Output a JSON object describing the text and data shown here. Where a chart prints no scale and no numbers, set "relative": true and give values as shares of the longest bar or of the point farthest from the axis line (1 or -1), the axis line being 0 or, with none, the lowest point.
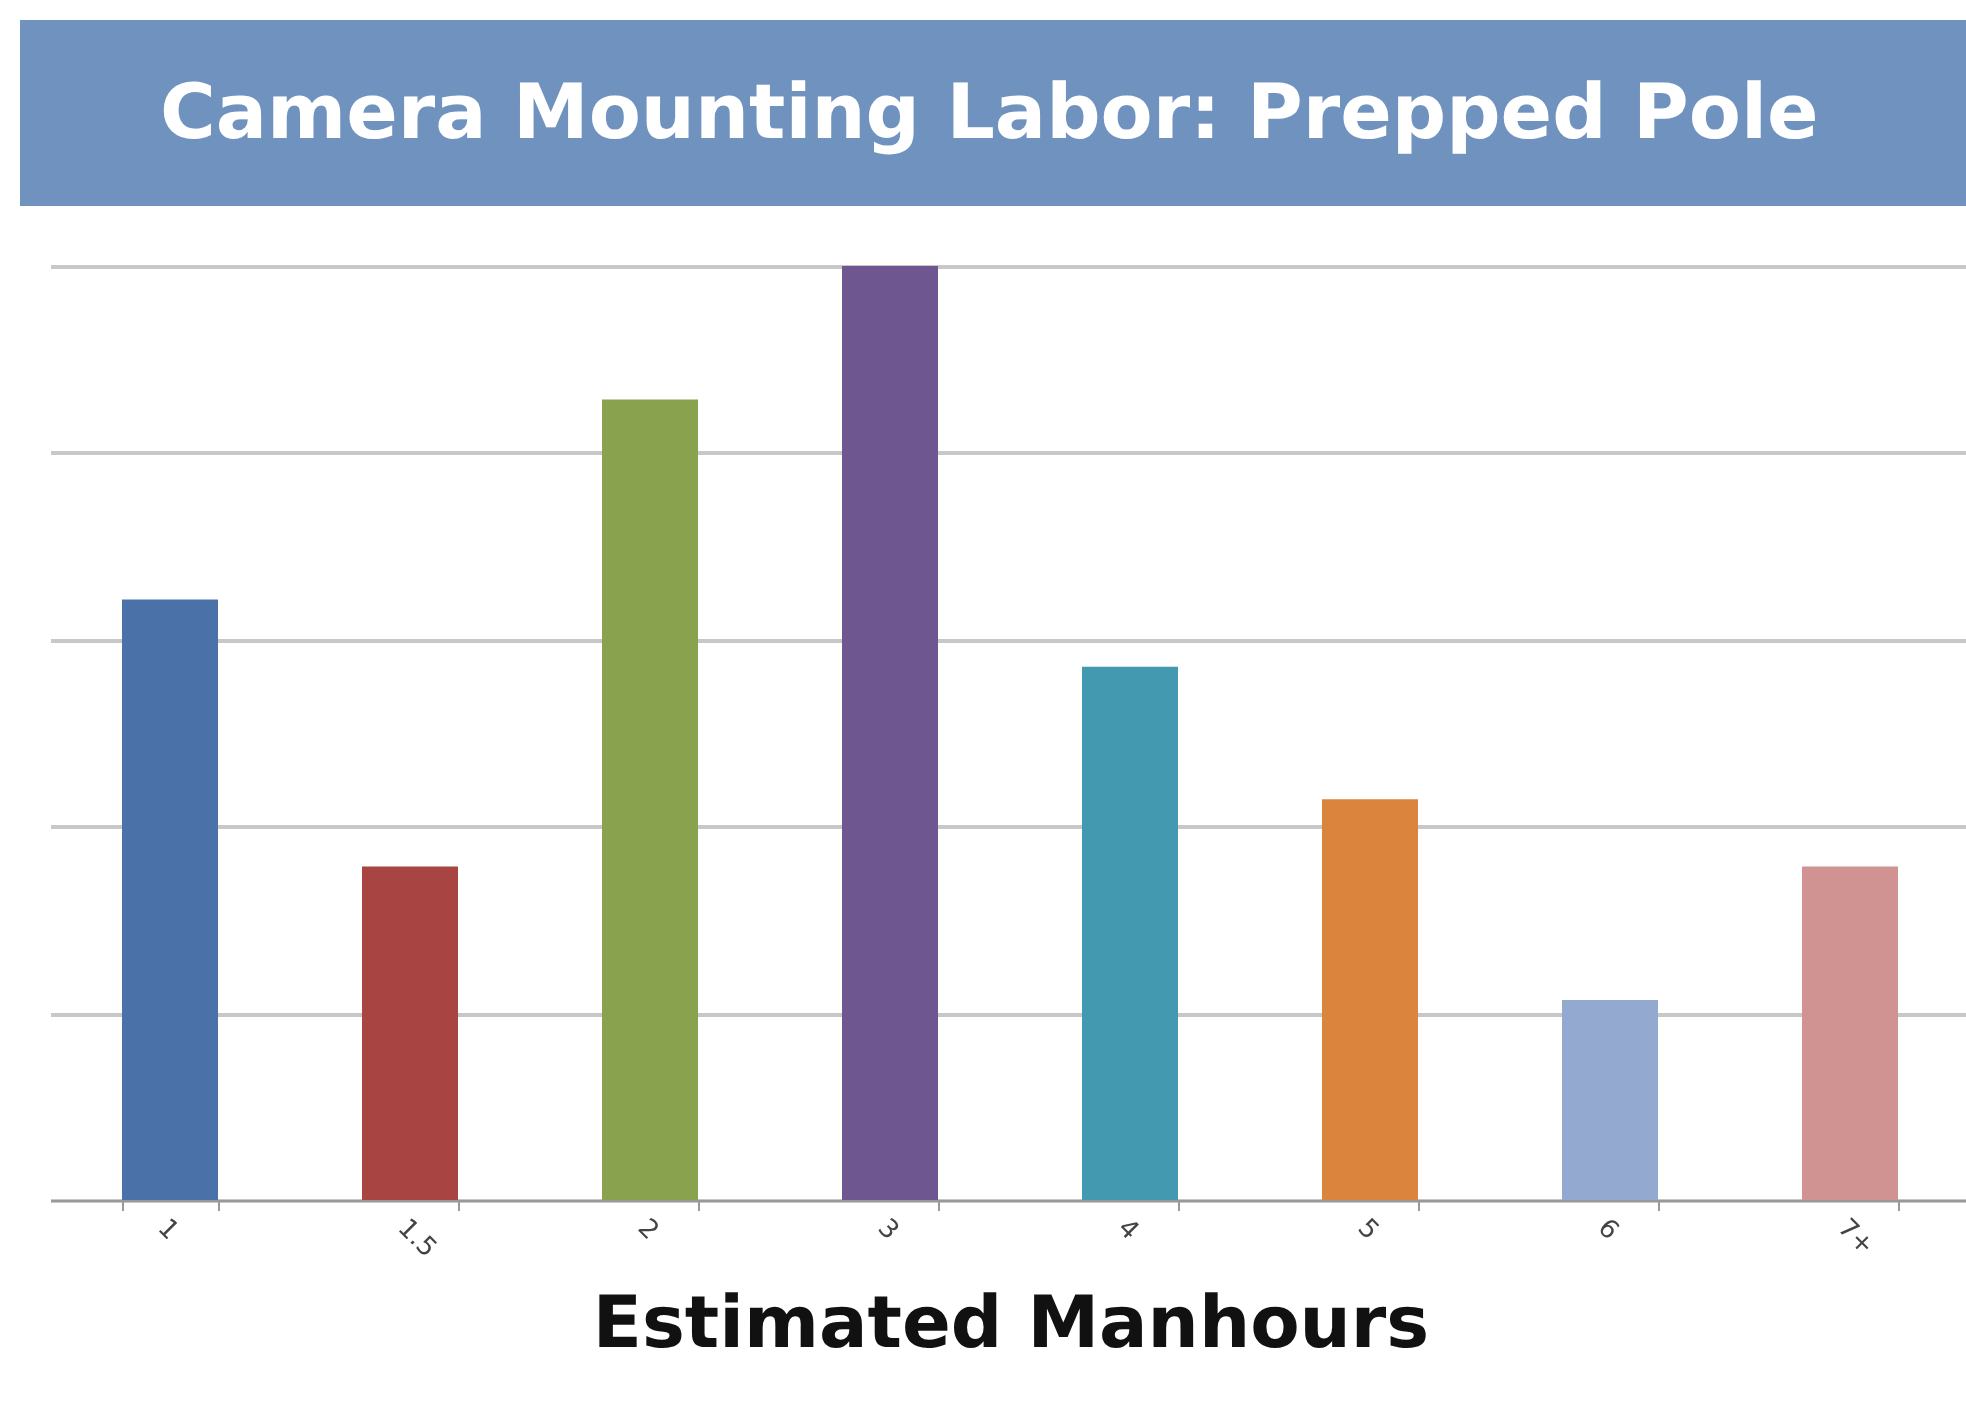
{
  "chart_data": {
    "type": "bar",
    "title": "Camera Mounting Labor: Prepped Pole",
    "xlabel": "Estimated Manhours",
    "relative": true,
    "grid": "y",
    "categories": [
      "1",
      "1.5",
      "2",
      "3",
      "4",
      "5",
      "6",
      "7+"
    ],
    "values": [
      0.643,
      0.357,
      0.857,
      1,
      0.571,
      0.429,
      0.214,
      0.357
    ],
    "colors": [
      "#4a72a8",
      "#a84442",
      "#88a24e",
      "#6e5690",
      "#4299b0",
      "#db843d",
      "#93a9cf",
      "#d19392"
    ]
  }
}
